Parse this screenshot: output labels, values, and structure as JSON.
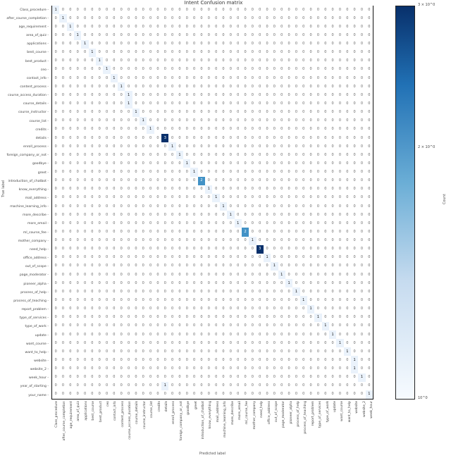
{
  "chart_data": {
    "type": "heatmap",
    "title": "Intent Confusion matrix",
    "xlabel": "Predicted label",
    "ylabel": "True label",
    "colorbar": {
      "scale": "log",
      "ticks": [
        "10^0",
        "2 × 10^0",
        "3 × 10^0"
      ],
      "label": "Count",
      "colormap": "Blues",
      "min_color": "#f7fbff",
      "max_color": "#08306b"
    },
    "labels": [
      "Class_procedure",
      "after_course_completion",
      "age_requirement",
      "area_of_quiz",
      "applications",
      "best_course",
      "best_product",
      "ceo",
      "contact_info",
      "content_process",
      "course_access_duration",
      "course_details",
      "course_instructor",
      "course_list",
      "credits",
      "details",
      "enroll_process",
      "foreign_company_or_not",
      "goodbye",
      "greet",
      "introduction_of_chatbot",
      "know_everything",
      "mail_address",
      "machine_learning_info",
      "more_describe",
      "more_email",
      "ml_course_fee",
      "mother_company",
      "need_help",
      "office_address",
      "out_of_scope",
      "page_moderator",
      "pioneer_alpha",
      "process_of_help",
      "process_of_teaching",
      "report_problem",
      "type_of_services",
      "type_of_work",
      "update",
      "want_course",
      "want_to_help",
      "website",
      "website_2",
      "week_hour",
      "year_of_starting",
      "your_name"
    ],
    "nonzero_cells": [
      {
        "row": 0,
        "col": 0,
        "value": 1
      },
      {
        "row": 1,
        "col": 1,
        "value": 1
      },
      {
        "row": 2,
        "col": 2,
        "value": 1
      },
      {
        "row": 3,
        "col": 3,
        "value": 1
      },
      {
        "row": 4,
        "col": 4,
        "value": 1
      },
      {
        "row": 5,
        "col": 5,
        "value": 1
      },
      {
        "row": 6,
        "col": 6,
        "value": 1
      },
      {
        "row": 7,
        "col": 7,
        "value": 1
      },
      {
        "row": 8,
        "col": 8,
        "value": 1
      },
      {
        "row": 9,
        "col": 9,
        "value": 1
      },
      {
        "row": 10,
        "col": 10,
        "value": 1
      },
      {
        "row": 11,
        "col": 10,
        "value": 1
      },
      {
        "row": 12,
        "col": 11,
        "value": 1
      },
      {
        "row": 13,
        "col": 12,
        "value": 1
      },
      {
        "row": 14,
        "col": 13,
        "value": 1
      },
      {
        "row": 15,
        "col": 15,
        "value": 3
      },
      {
        "row": 16,
        "col": 16,
        "value": 1
      },
      {
        "row": 17,
        "col": 17,
        "value": 1
      },
      {
        "row": 18,
        "col": 18,
        "value": 1
      },
      {
        "row": 19,
        "col": 19,
        "value": 1
      },
      {
        "row": 20,
        "col": 20,
        "value": 2
      },
      {
        "row": 21,
        "col": 21,
        "value": 1
      },
      {
        "row": 22,
        "col": 22,
        "value": 1
      },
      {
        "row": 23,
        "col": 23,
        "value": 1
      },
      {
        "row": 24,
        "col": 24,
        "value": 1
      },
      {
        "row": 25,
        "col": 25,
        "value": 1
      },
      {
        "row": 26,
        "col": 26,
        "value": 2
      },
      {
        "row": 27,
        "col": 27,
        "value": 1
      },
      {
        "row": 28,
        "col": 28,
        "value": 3
      },
      {
        "row": 29,
        "col": 29,
        "value": 1
      },
      {
        "row": 30,
        "col": 30,
        "value": 1
      },
      {
        "row": 31,
        "col": 31,
        "value": 1
      },
      {
        "row": 32,
        "col": 32,
        "value": 1
      },
      {
        "row": 33,
        "col": 33,
        "value": 1
      },
      {
        "row": 34,
        "col": 34,
        "value": 1
      },
      {
        "row": 35,
        "col": 35,
        "value": 1
      },
      {
        "row": 36,
        "col": 36,
        "value": 1
      },
      {
        "row": 37,
        "col": 37,
        "value": 1
      },
      {
        "row": 38,
        "col": 38,
        "value": 1
      },
      {
        "row": 39,
        "col": 39,
        "value": 1
      },
      {
        "row": 40,
        "col": 40,
        "value": 1
      },
      {
        "row": 41,
        "col": 41,
        "value": 1
      },
      {
        "row": 42,
        "col": 41,
        "value": 1
      },
      {
        "row": 43,
        "col": 42,
        "value": 1
      },
      {
        "row": 44,
        "col": 15,
        "value": 1
      },
      {
        "row": 45,
        "col": 43,
        "value": 1
      }
    ],
    "grid": false
  }
}
